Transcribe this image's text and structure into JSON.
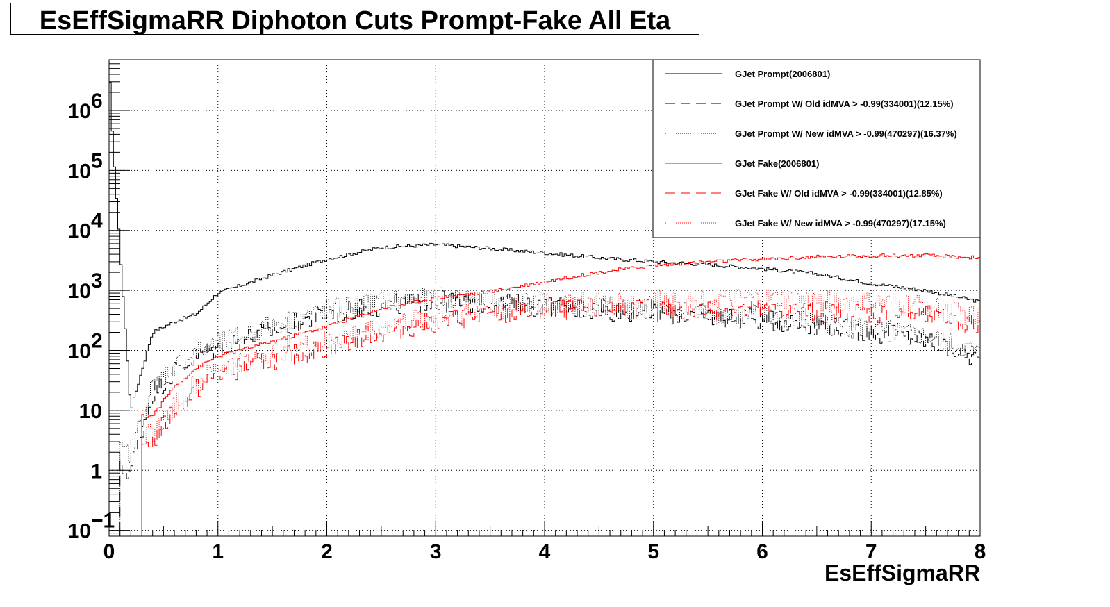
{
  "title": "EsEffSigmaRR Diphoton Cuts Prompt-Fake All Eta",
  "chart_data": {
    "type": "line",
    "title": "EsEffSigmaRR Diphoton Cuts Prompt-Fake All Eta",
    "xlabel": "EsEffSigmaRR",
    "ylabel": "",
    "xlim": [
      0,
      8
    ],
    "ylim": [
      0.08,
      7000000
    ],
    "y_scale": "log",
    "grid": true,
    "legend_position": "top-right",
    "x_ticks": [
      "0",
      "1",
      "2",
      "3",
      "4",
      "5",
      "6",
      "7",
      "8"
    ],
    "y_ticks": [
      {
        "value": 0.1,
        "base": "10",
        "exp": "−1"
      },
      {
        "value": 1,
        "base": "1",
        "exp": ""
      },
      {
        "value": 10,
        "base": "10",
        "exp": ""
      },
      {
        "value": 100,
        "base": "10",
        "exp": "2"
      },
      {
        "value": 1000,
        "base": "10",
        "exp": "3"
      },
      {
        "value": 10000,
        "base": "10",
        "exp": "4"
      },
      {
        "value": 100000,
        "base": "10",
        "exp": "5"
      },
      {
        "value": 1000000,
        "base": "10",
        "exp": "6"
      }
    ],
    "x": [
      0,
      0.2,
      0.4,
      0.6,
      0.8,
      1.0,
      1.5,
      2.0,
      2.5,
      3.0,
      3.5,
      4.0,
      4.5,
      5.0,
      5.5,
      6.0,
      6.5,
      7.0,
      7.5,
      8.0
    ],
    "series": [
      {
        "name": "GJet Prompt(2006801)",
        "color": "#000000",
        "dash": "solid",
        "values": [
          2800000,
          10,
          200,
          300,
          400,
          900,
          1800,
          3300,
          5200,
          5800,
          5000,
          4200,
          3500,
          3000,
          2700,
          2300,
          1900,
          1300,
          1000,
          650
        ]
      },
      {
        "name": "GJet Prompt W/ Old idMVA > -0.99(334001)(12.15%)",
        "color": "#000000",
        "dash": "long",
        "values": [
          0,
          1,
          20,
          45,
          80,
          110,
          220,
          400,
          550,
          650,
          620,
          540,
          470,
          420,
          370,
          330,
          270,
          200,
          150,
          70
        ]
      },
      {
        "name": "GJet Prompt W/ New idMVA > -0.99(470297)(16.37%)",
        "color": "#000000",
        "dash": "dotted",
        "values": [
          0,
          2,
          25,
          55,
          90,
          130,
          260,
          480,
          650,
          750,
          700,
          620,
          540,
          480,
          420,
          370,
          300,
          230,
          170,
          90
        ]
      },
      {
        "name": "GJet Fake(2006801)",
        "color": "#ff0000",
        "dash": "solid",
        "values": [
          0,
          0,
          8,
          25,
          50,
          80,
          140,
          250,
          500,
          750,
          950,
          1400,
          2000,
          2600,
          3000,
          3300,
          3600,
          3800,
          3800,
          3500
        ]
      },
      {
        "name": "GJet Fake W/ Old idMVA > -0.99(334001)(12.85%)",
        "color": "#ff0000",
        "dash": "long",
        "values": [
          0,
          0,
          3,
          10,
          22,
          40,
          70,
          110,
          200,
          300,
          380,
          450,
          480,
          490,
          480,
          470,
          450,
          420,
          380,
          250
        ]
      },
      {
        "name": "GJet Fake W/ New idMVA > -0.99(470297)(17.15%)",
        "color": "#ff0000",
        "dash": "dotted",
        "values": [
          0,
          0,
          4,
          12,
          28,
          50,
          90,
          140,
          250,
          380,
          480,
          580,
          640,
          680,
          700,
          700,
          670,
          620,
          560,
          350
        ]
      }
    ]
  }
}
